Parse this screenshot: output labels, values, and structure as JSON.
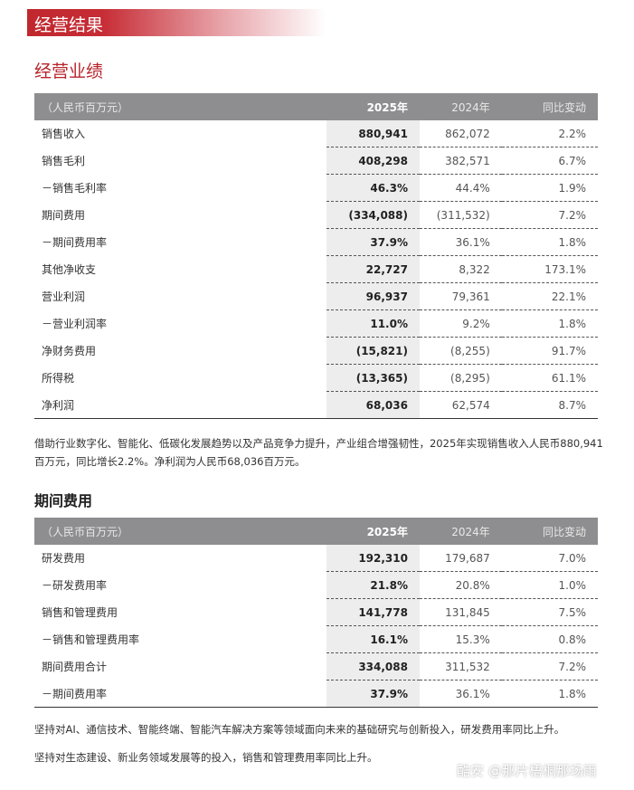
{
  "banner": "经营结果",
  "section1": {
    "title": "经营业绩",
    "headers": [
      "（人民币百万元）",
      "2025年",
      "2024年",
      "同比变动"
    ],
    "rows": [
      [
        "销售收入",
        "880,941",
        "862,072",
        "2.2%"
      ],
      [
        "销售毛利",
        "408,298",
        "382,571",
        "6.7%"
      ],
      [
        "－销售毛利率",
        "46.3%",
        "44.4%",
        "1.9%"
      ],
      [
        "期间费用",
        "(334,088)",
        "(311,532)",
        "7.2%"
      ],
      [
        "－期间费用率",
        "37.9%",
        "36.1%",
        "1.8%"
      ],
      [
        "其他净收支",
        "22,727",
        "8,322",
        "173.1%"
      ],
      [
        "营业利润",
        "96,937",
        "79,361",
        "22.1%"
      ],
      [
        "－营业利润率",
        "11.0%",
        "9.2%",
        "1.8%"
      ],
      [
        "净财务费用",
        "(15,821)",
        "(8,255)",
        "91.7%"
      ],
      [
        "所得税",
        "(13,365)",
        "(8,295)",
        "61.1%"
      ],
      [
        "净利润",
        "68,036",
        "62,574",
        "8.7%"
      ]
    ],
    "note": "借助行业数字化、智能化、低碳化发展趋势以及产品竞争力提升，产业组合增强韧性，2025年实现销售收入人民币880,941百万元，同比增长2.2%。净利润为人民币68,036百万元。"
  },
  "section2": {
    "title": "期间费用",
    "headers": [
      "（人民币百万元）",
      "2025年",
      "2024年",
      "同比变动"
    ],
    "rows": [
      [
        "研发费用",
        "192,310",
        "179,687",
        "7.0%"
      ],
      [
        "－研发费用率",
        "21.8%",
        "20.8%",
        "1.0%"
      ],
      [
        "销售和管理费用",
        "141,778",
        "131,845",
        "7.5%"
      ],
      [
        "－销售和管理费用率",
        "16.1%",
        "15.3%",
        "0.8%"
      ],
      [
        "期间费用合计",
        "334,088",
        "311,532",
        "7.2%"
      ],
      [
        "－期间费用率",
        "37.9%",
        "36.1%",
        "1.8%"
      ]
    ],
    "notes": [
      "坚持对AI、通信技术、智能终端、智能汽车解决方案等领域面向未来的基础研究与创新投入，研发费用率同比上升。",
      "坚持对生态建设、新业务领域发展等的投入，销售和管理费用率同比上升。"
    ]
  },
  "watermark": "酷安 @那片梧桐那场雨"
}
